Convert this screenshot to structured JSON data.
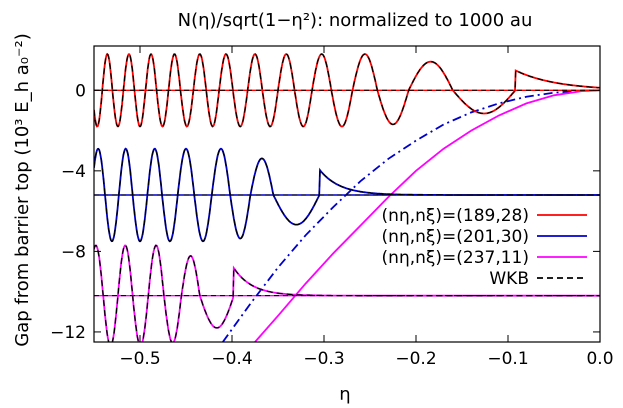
{
  "chart_data": {
    "type": "line",
    "title": "N(η)/sqrt(1−η²): normalized to 1000 au",
    "xlabel": "η",
    "ylabel": "Gap from barrier top (10³ E_h a₀⁻²)",
    "xlim": [
      -0.55,
      0.0
    ],
    "ylim": [
      -12.5,
      2.2
    ],
    "xticks": [
      -0.5,
      -0.4,
      -0.3,
      -0.2,
      -0.1,
      0.0
    ],
    "xtick_labels": [
      "−0.5",
      "−0.4",
      "−0.3",
      "−0.2",
      "−0.1",
      "0.0"
    ],
    "yticks": [
      0,
      -4,
      -8,
      -12
    ],
    "ytick_labels": [
      "0",
      "−4",
      "−8",
      "−12"
    ],
    "grid": false,
    "legend_position": "inside-right",
    "colors": {
      "red": "#ff0000",
      "blue": "#0000cc",
      "magenta": "#ff00ff",
      "black": "#000000"
    },
    "series": [
      {
        "name": "(nη,nξ)=(189,28)",
        "color": "#ff0000",
        "style": "solid",
        "baseline": 0.0,
        "amplitude": 1.8,
        "nodes": [
          -0.092,
          -0.16,
          -0.208,
          -0.242,
          -0.269,
          -0.292,
          -0.313,
          -0.332,
          -0.35,
          -0.367,
          -0.383,
          -0.399,
          -0.414,
          -0.428,
          -0.442,
          -0.456,
          -0.469,
          -0.482,
          -0.494,
          -0.506,
          -0.518,
          -0.53,
          -0.541,
          -0.552
        ],
        "decay_width": 0.045
      },
      {
        "name": "(nη,nξ)=(201,30)",
        "color": "#0000cc",
        "style": "solid",
        "baseline": -5.2,
        "amplitude": 2.3,
        "nodes": [
          -0.305,
          -0.355,
          -0.38,
          -0.402,
          -0.422,
          -0.441,
          -0.459,
          -0.476,
          -0.492,
          -0.508,
          -0.523,
          -0.538,
          -0.553
        ],
        "decay_width": 0.022
      },
      {
        "name": "(nη,nξ)=(237,11)",
        "color": "#ff00ff",
        "style": "solid",
        "baseline": -10.2,
        "amplitude": 2.5,
        "nodes": [
          -0.398,
          -0.435,
          -0.455,
          -0.474,
          -0.491,
          -0.508,
          -0.524,
          -0.54,
          -0.556
        ],
        "decay_width": 0.02
      },
      {
        "name": "WKB",
        "color": "#000000",
        "style": "dashed"
      }
    ],
    "barrier_curves": [
      {
        "color": "#0000cc",
        "style": "dash-dot",
        "x": [
          -0.41,
          -0.38,
          -0.35,
          -0.32,
          -0.29,
          -0.26,
          -0.23,
          -0.2,
          -0.17,
          -0.14,
          -0.11,
          -0.08,
          -0.05,
          -0.02,
          0.0
        ],
        "y": [
          -12.5,
          -10.6,
          -8.8,
          -7.2,
          -5.8,
          -4.5,
          -3.4,
          -2.5,
          -1.7,
          -1.1,
          -0.65,
          -0.32,
          -0.12,
          -0.02,
          0.0
        ]
      },
      {
        "color": "#ff00ff",
        "style": "solid",
        "x": [
          -0.375,
          -0.35,
          -0.32,
          -0.29,
          -0.26,
          -0.23,
          -0.2,
          -0.17,
          -0.14,
          -0.11,
          -0.08,
          -0.05,
          -0.02,
          0.0
        ],
        "y": [
          -12.5,
          -11.2,
          -9.6,
          -8.1,
          -6.7,
          -5.3,
          -4.0,
          -2.9,
          -2.0,
          -1.25,
          -0.65,
          -0.25,
          -0.04,
          0.0
        ]
      }
    ]
  }
}
